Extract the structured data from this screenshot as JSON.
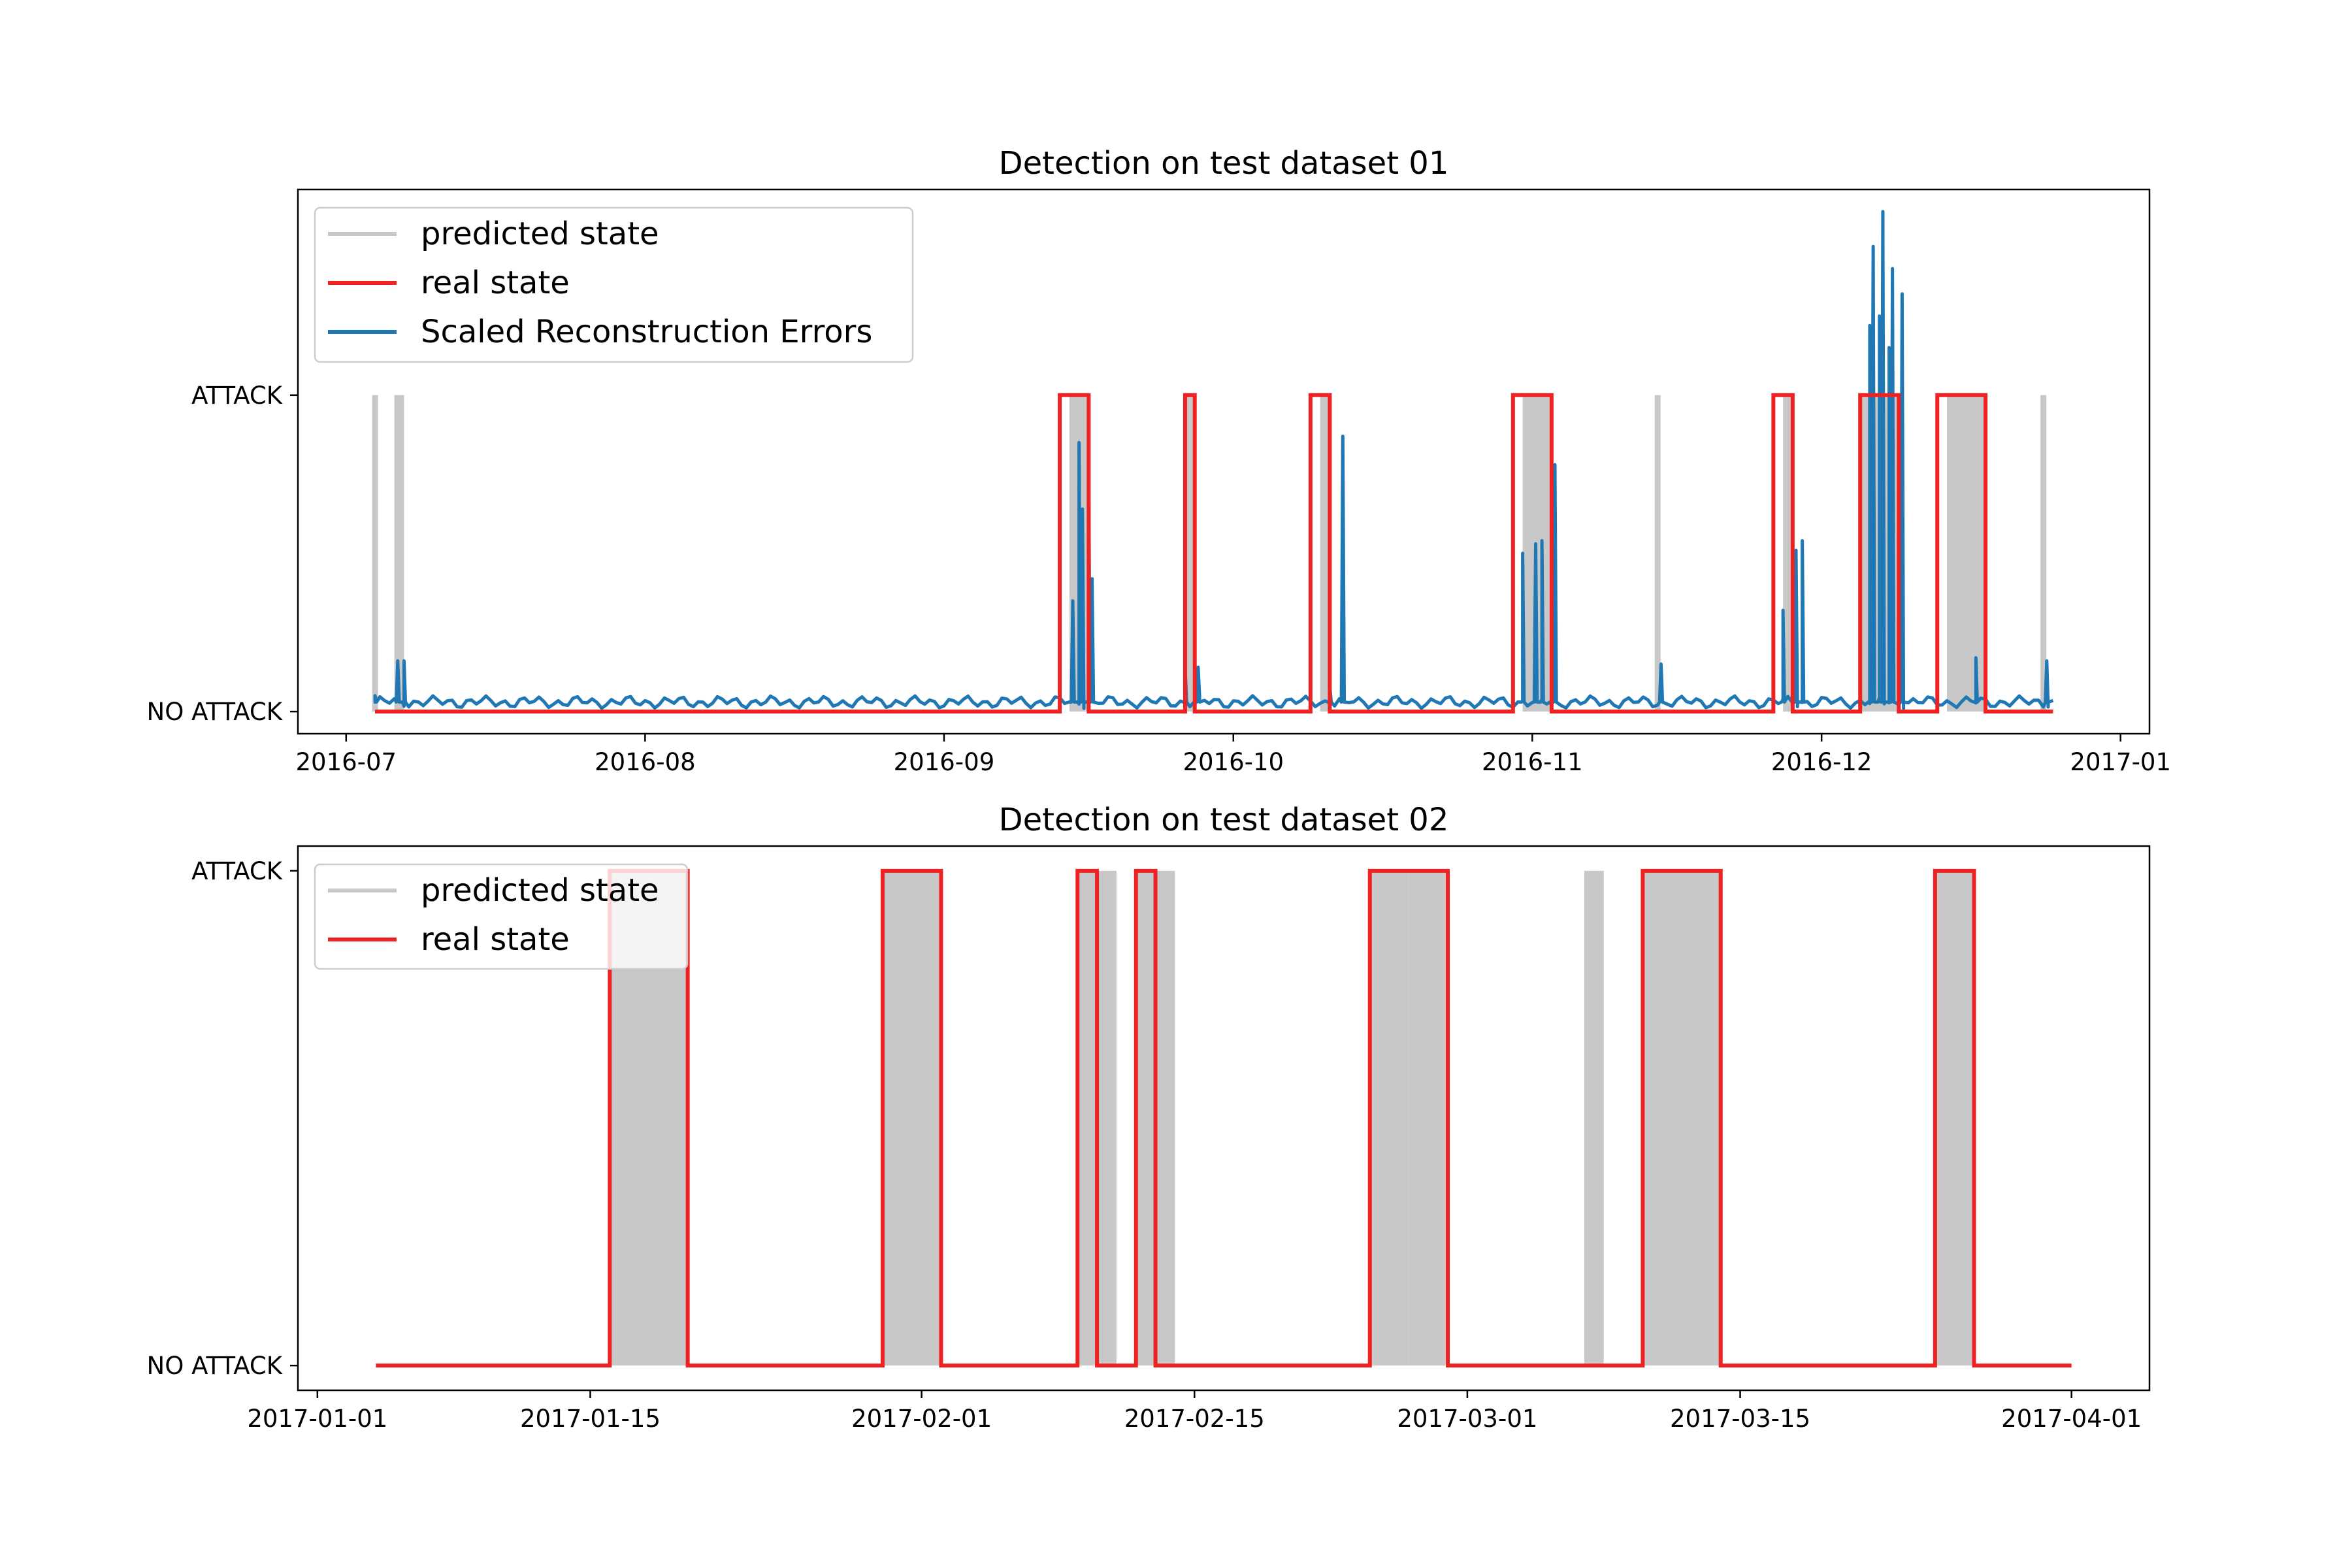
{
  "chart_data": [
    {
      "type": "line",
      "title": "Detection on test dataset 01",
      "x_type": "date",
      "xlim": [
        "2016-06-26",
        "2017-01-04"
      ],
      "x_ticks": [
        "2016-07",
        "2016-08",
        "2016-09",
        "2016-10",
        "2016-11",
        "2016-12",
        "2017-01"
      ],
      "y_ticks": [
        {
          "value": 0,
          "label": "NO ATTACK"
        },
        {
          "value": 1,
          "label": "ATTACK"
        }
      ],
      "ylim": [
        -0.07,
        1.65
      ],
      "legend": {
        "position": "upper left",
        "entries": [
          {
            "label": "predicted state",
            "color": "#c8c8c8"
          },
          {
            "label": "real state",
            "color": "#ee2222"
          },
          {
            "label": "Scaled Reconstruction Errors",
            "color": "#1f77b4"
          }
        ]
      },
      "series": [
        {
          "name": "real state",
          "style": "step",
          "color": "#ee2222",
          "x_range": [
            "2016-07-04",
            "2016-12-25"
          ],
          "segments": [
            [
              "2016-09-13",
              "2016-09-16"
            ],
            [
              "2016-09-26",
              "2016-09-27"
            ],
            [
              "2016-10-09",
              "2016-10-11"
            ],
            [
              "2016-10-30",
              "2016-11-03"
            ],
            [
              "2016-11-26",
              "2016-11-28"
            ],
            [
              "2016-12-05",
              "2016-12-09"
            ],
            [
              "2016-12-13",
              "2016-12-18"
            ]
          ]
        },
        {
          "name": "predicted state",
          "style": "bands",
          "color": "#c8c8c8",
          "segments": [
            [
              "2016-07-04",
              "2016-07-04"
            ],
            [
              "2016-07-06",
              "2016-07-07"
            ],
            [
              "2016-09-14",
              "2016-09-16"
            ],
            [
              "2016-09-26",
              "2016-09-27"
            ],
            [
              "2016-10-10",
              "2016-10-11"
            ],
            [
              "2016-10-31",
              "2016-11-03"
            ],
            [
              "2016-11-14",
              "2016-11-14"
            ],
            [
              "2016-11-27",
              "2016-11-28"
            ],
            [
              "2016-12-05",
              "2016-12-09"
            ],
            [
              "2016-12-14",
              "2016-12-18"
            ],
            [
              "2016-12-24",
              "2016-12-24"
            ]
          ]
        },
        {
          "name": "Scaled Reconstruction Errors",
          "style": "line",
          "color": "#1f77b4",
          "x_range": [
            "2016-07-04",
            "2016-12-25"
          ],
          "baseline": 0.03,
          "spikes": [
            {
              "date": "2016-07-04",
              "value": 0.05
            },
            {
              "date": "2016-07-06",
              "value": 0.16
            },
            {
              "date": "2016-07-07",
              "value": 0.16
            },
            {
              "date": "2016-09-14",
              "value": 0.35
            },
            {
              "date": "2016-09-15",
              "value": 0.85
            },
            {
              "date": "2016-09-15",
              "value": 0.64
            },
            {
              "date": "2016-09-16",
              "value": 0.74
            },
            {
              "date": "2016-09-16",
              "value": 0.42
            },
            {
              "date": "2016-09-26",
              "value": 0.14
            },
            {
              "date": "2016-09-27",
              "value": 0.14
            },
            {
              "date": "2016-10-11",
              "value": 0.08
            },
            {
              "date": "2016-10-12",
              "value": 0.87
            },
            {
              "date": "2016-10-31",
              "value": 0.5
            },
            {
              "date": "2016-11-01",
              "value": 0.53
            },
            {
              "date": "2016-11-02",
              "value": 0.54
            },
            {
              "date": "2016-11-03",
              "value": 0.78
            },
            {
              "date": "2016-11-03",
              "value": 0.18
            },
            {
              "date": "2016-11-14",
              "value": 0.15
            },
            {
              "date": "2016-11-27",
              "value": 0.32
            },
            {
              "date": "2016-11-28",
              "value": 0.51
            },
            {
              "date": "2016-11-29",
              "value": 0.54
            },
            {
              "date": "2016-12-06",
              "value": 1.47
            },
            {
              "date": "2016-12-06",
              "value": 1.22
            },
            {
              "date": "2016-12-07",
              "value": 1.58
            },
            {
              "date": "2016-12-07",
              "value": 1.25
            },
            {
              "date": "2016-12-08",
              "value": 1.4
            },
            {
              "date": "2016-12-08",
              "value": 1.15
            },
            {
              "date": "2016-12-09",
              "value": 1.32
            },
            {
              "date": "2016-12-17",
              "value": 0.17
            },
            {
              "date": "2016-12-24",
              "value": 0.16
            }
          ]
        }
      ]
    },
    {
      "type": "line",
      "title": "Detection on test dataset 02",
      "x_type": "date",
      "xlim": [
        "2016-12-31",
        "2017-04-05"
      ],
      "x_ticks": [
        "2017-01-01",
        "2017-01-15",
        "2017-02-01",
        "2017-02-15",
        "2017-03-01",
        "2017-03-15",
        "2017-04-01"
      ],
      "y_ticks": [
        {
          "value": 0,
          "label": "NO ATTACK"
        },
        {
          "value": 1,
          "label": "ATTACK"
        }
      ],
      "ylim": [
        -0.05,
        1.05
      ],
      "legend": {
        "position": "upper left",
        "entries": [
          {
            "label": "predicted state",
            "color": "#c8c8c8"
          },
          {
            "label": "real state",
            "color": "#ee2222"
          }
        ]
      },
      "series": [
        {
          "name": "real state",
          "style": "step",
          "color": "#ee2222",
          "x_range": [
            "2017-01-04",
            "2017-04-01"
          ],
          "segments": [
            [
              "2017-01-16",
              "2017-01-20"
            ],
            [
              "2017-01-30",
              "2017-02-02"
            ],
            [
              "2017-02-09",
              "2017-02-10"
            ],
            [
              "2017-02-12",
              "2017-02-13"
            ],
            [
              "2017-02-24",
              "2017-02-28"
            ],
            [
              "2017-03-10",
              "2017-03-14"
            ],
            [
              "2017-03-25",
              "2017-03-27"
            ]
          ]
        },
        {
          "name": "predicted state",
          "style": "bands",
          "color": "#c8c8c8",
          "segments": [
            [
              "2017-01-16",
              "2017-01-20"
            ],
            [
              "2017-01-30",
              "2017-02-01"
            ],
            [
              "2017-02-01",
              "2017-02-02"
            ],
            [
              "2017-02-09",
              "2017-02-11"
            ],
            [
              "2017-02-12",
              "2017-02-14"
            ],
            [
              "2017-02-24",
              "2017-02-25"
            ],
            [
              "2017-02-25",
              "2017-02-26"
            ],
            [
              "2017-02-26",
              "2017-02-28"
            ],
            [
              "2017-03-07",
              "2017-03-08"
            ],
            [
              "2017-03-10",
              "2017-03-14"
            ],
            [
              "2017-03-25",
              "2017-03-27"
            ]
          ]
        }
      ]
    }
  ]
}
